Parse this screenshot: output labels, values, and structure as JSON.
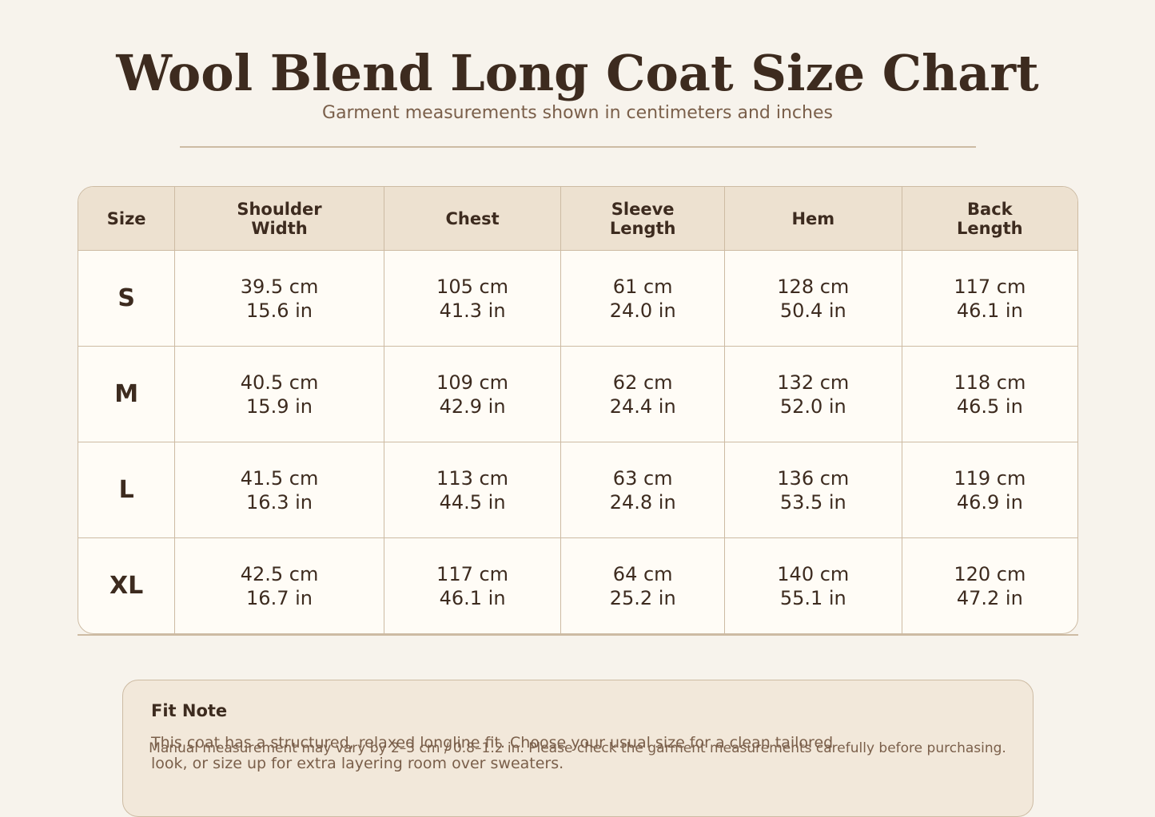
{
  "header": {
    "title": "Wool Blend Long Coat Size Chart",
    "subtitle": "Garment measurements shown in centimeters and inches"
  },
  "table": {
    "columns": [
      "Size",
      "Shoulder Width",
      "Chest",
      "Sleeve Length",
      "Hem",
      "Back Length"
    ],
    "rows": [
      [
        "S",
        [
          "39.5 cm",
          "15.6 in"
        ],
        [
          "105 cm",
          "41.3 in"
        ],
        [
          "61 cm",
          "24.0 in"
        ],
        [
          "128 cm",
          "50.4 in"
        ],
        [
          "117 cm",
          "46.1 in"
        ]
      ],
      [
        "M",
        [
          "40.5 cm",
          "15.9 in"
        ],
        [
          "109 cm",
          "42.9 in"
        ],
        [
          "62 cm",
          "24.4 in"
        ],
        [
          "132 cm",
          "52.0 in"
        ],
        [
          "118 cm",
          "46.5 in"
        ]
      ],
      [
        "L",
        [
          "41.5 cm",
          "16.3 in"
        ],
        [
          "113 cm",
          "44.5 in"
        ],
        [
          "63 cm",
          "24.8 in"
        ],
        [
          "136 cm",
          "53.5 in"
        ],
        [
          "119 cm",
          "46.9 in"
        ]
      ],
      [
        "XL",
        [
          "42.5 cm",
          "16.7 in"
        ],
        [
          "117 cm",
          "46.1 in"
        ],
        [
          "64 cm",
          "25.2 in"
        ],
        [
          "140 cm",
          "55.1 in"
        ],
        [
          "120 cm",
          "47.2 in"
        ]
      ]
    ]
  },
  "note": {
    "title": "Fit Note",
    "text": "This coat has a structured, relaxed longline fit. Choose your usual size for a clean tailored look, or size up for extra layering room over sweaters."
  },
  "footer": "Manual measurement may vary by 2–3 cm / 0.8–1.2 in. Please check the garment measurements carefully before purchasing."
}
